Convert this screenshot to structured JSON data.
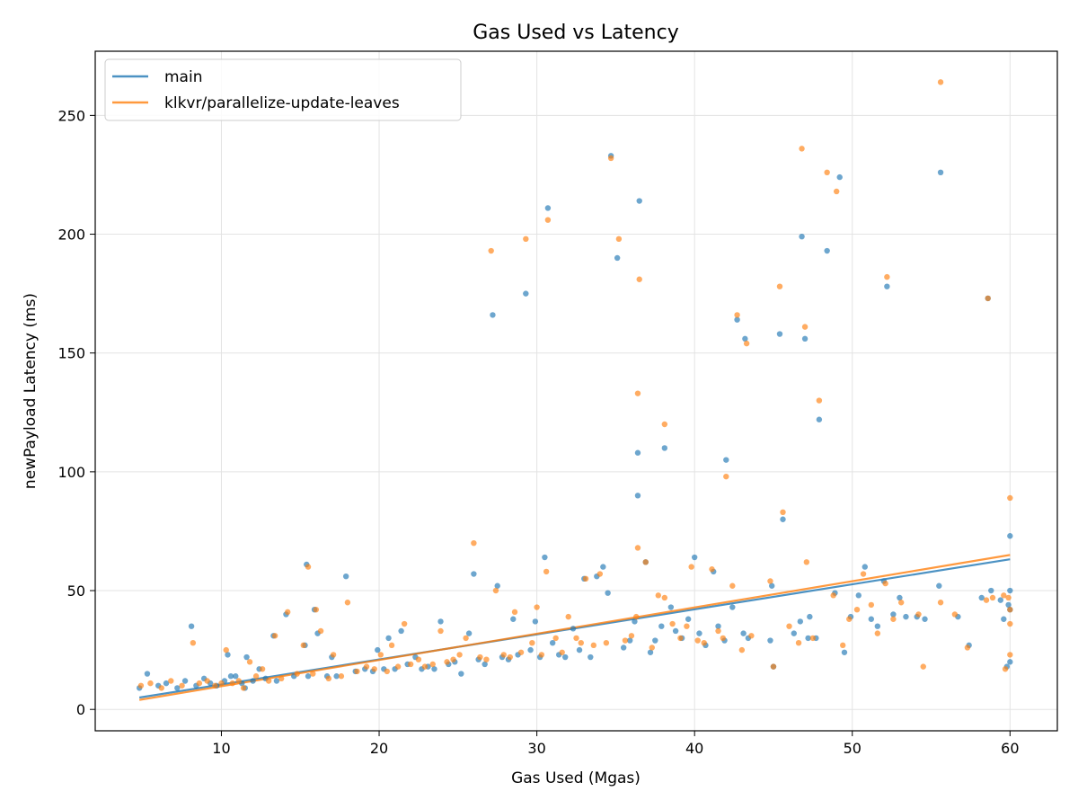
{
  "chart_data": {
    "type": "scatter",
    "title": "Gas Used vs Latency",
    "xlabel": "Gas Used (Mgas)",
    "ylabel": "newPayload Latency (ms)",
    "xlim": [
      2,
      63
    ],
    "ylim": [
      -9,
      277
    ],
    "xticks": [
      10,
      20,
      30,
      40,
      50,
      60
    ],
    "yticks": [
      0,
      50,
      100,
      150,
      200,
      250
    ],
    "grid": true,
    "legend_position": "top-left",
    "series": [
      {
        "name": "main",
        "color": "#1f77b4",
        "trend": [
          [
            4.8,
            5
          ],
          [
            60,
            63.2
          ]
        ],
        "points": [
          [
            4.8,
            9
          ],
          [
            5.3,
            15
          ],
          [
            6,
            10
          ],
          [
            6.5,
            11
          ],
          [
            7.2,
            9
          ],
          [
            7.7,
            12
          ],
          [
            8.1,
            35
          ],
          [
            8.4,
            10
          ],
          [
            8.9,
            13
          ],
          [
            9.3,
            11
          ],
          [
            9.7,
            10
          ],
          [
            10.2,
            12
          ],
          [
            10.4,
            23
          ],
          [
            10.6,
            14
          ],
          [
            10.9,
            14
          ],
          [
            11.3,
            11
          ],
          [
            11.5,
            9
          ],
          [
            11.6,
            22
          ],
          [
            12,
            12
          ],
          [
            12.4,
            17
          ],
          [
            12.8,
            13
          ],
          [
            13.3,
            31
          ],
          [
            13.5,
            12
          ],
          [
            14.1,
            40
          ],
          [
            14.6,
            14
          ],
          [
            15.3,
            27
          ],
          [
            15.4,
            61
          ],
          [
            15.5,
            14
          ],
          [
            15.9,
            42
          ],
          [
            16.1,
            32
          ],
          [
            16.7,
            14
          ],
          [
            17,
            22
          ],
          [
            17.3,
            14
          ],
          [
            17.9,
            56
          ],
          [
            18.5,
            16
          ],
          [
            19.1,
            17
          ],
          [
            19.6,
            16
          ],
          [
            19.9,
            25
          ],
          [
            20.3,
            17
          ],
          [
            20.6,
            30
          ],
          [
            21,
            17
          ],
          [
            21.4,
            33
          ],
          [
            21.8,
            19
          ],
          [
            22.3,
            22
          ],
          [
            22.7,
            17
          ],
          [
            23.1,
            18
          ],
          [
            23.5,
            17
          ],
          [
            23.9,
            37
          ],
          [
            24.4,
            19
          ],
          [
            24.8,
            20
          ],
          [
            25.2,
            15
          ],
          [
            25.7,
            32
          ],
          [
            26,
            57
          ],
          [
            26.3,
            21
          ],
          [
            26.7,
            19
          ],
          [
            27.2,
            166
          ],
          [
            27.5,
            52
          ],
          [
            27.8,
            22
          ],
          [
            28.2,
            21
          ],
          [
            28.5,
            38
          ],
          [
            28.8,
            23
          ],
          [
            29.3,
            175
          ],
          [
            29.6,
            25
          ],
          [
            29.9,
            37
          ],
          [
            30.2,
            22
          ],
          [
            30.5,
            64
          ],
          [
            30.7,
            211
          ],
          [
            31,
            28
          ],
          [
            31.4,
            23
          ],
          [
            31.8,
            22
          ],
          [
            32.3,
            34
          ],
          [
            32.7,
            25
          ],
          [
            33,
            55
          ],
          [
            33.4,
            22
          ],
          [
            33.8,
            56
          ],
          [
            34.2,
            60
          ],
          [
            34.5,
            49
          ],
          [
            34.7,
            233
          ],
          [
            35.1,
            190
          ],
          [
            35.5,
            26
          ],
          [
            35.9,
            29
          ],
          [
            36.2,
            37
          ],
          [
            36.4,
            108
          ],
          [
            36.4,
            90
          ],
          [
            36.5,
            214
          ],
          [
            36.9,
            62
          ],
          [
            37.2,
            24
          ],
          [
            37.5,
            29
          ],
          [
            37.9,
            35
          ],
          [
            38.1,
            110
          ],
          [
            38.5,
            43
          ],
          [
            38.8,
            33
          ],
          [
            39.2,
            30
          ],
          [
            39.6,
            38
          ],
          [
            40,
            64
          ],
          [
            40.3,
            32
          ],
          [
            40.7,
            27
          ],
          [
            41.2,
            58
          ],
          [
            41.5,
            35
          ],
          [
            41.9,
            29
          ],
          [
            42,
            105
          ],
          [
            42.4,
            43
          ],
          [
            42.7,
            164
          ],
          [
            43.1,
            32
          ],
          [
            43.2,
            156
          ],
          [
            43.4,
            30
          ],
          [
            44.9,
            52
          ],
          [
            45,
            18
          ],
          [
            45.4,
            158
          ],
          [
            45.6,
            80
          ],
          [
            46.3,
            32
          ],
          [
            46.7,
            37
          ],
          [
            46.8,
            199
          ],
          [
            47,
            156
          ],
          [
            47.3,
            39
          ],
          [
            47.7,
            30
          ],
          [
            47.9,
            122
          ],
          [
            48.4,
            193
          ],
          [
            48.9,
            49
          ],
          [
            49.2,
            224
          ],
          [
            49.5,
            24
          ],
          [
            49.9,
            39
          ],
          [
            50.4,
            48
          ],
          [
            50.8,
            60
          ],
          [
            51.2,
            38
          ],
          [
            51.6,
            35
          ],
          [
            52,
            54
          ],
          [
            52.2,
            178
          ],
          [
            52.6,
            40
          ],
          [
            53,
            47
          ],
          [
            53.4,
            39
          ],
          [
            54.1,
            39
          ],
          [
            54.6,
            38
          ],
          [
            55.5,
            52
          ],
          [
            55.6,
            226
          ],
          [
            56.7,
            39
          ],
          [
            57.4,
            27
          ],
          [
            58.6,
            173
          ],
          [
            58.8,
            50
          ],
          [
            59.4,
            46
          ],
          [
            59.6,
            38
          ],
          [
            59.8,
            18
          ],
          [
            59.9,
            44
          ],
          [
            60,
            73
          ],
          [
            60,
            50
          ],
          [
            60,
            42
          ],
          [
            60,
            20
          ],
          [
            58.2,
            47
          ],
          [
            47.2,
            30
          ],
          [
            44.8,
            29
          ]
        ]
      },
      {
        "name": "klkvr/parallelize-update-leaves",
        "color": "#ff7f0e",
        "trend": [
          [
            4.8,
            4
          ],
          [
            60,
            65
          ]
        ],
        "points": [
          [
            4.9,
            10
          ],
          [
            5.5,
            11
          ],
          [
            6.2,
            9
          ],
          [
            6.8,
            12
          ],
          [
            7.5,
            10
          ],
          [
            8.2,
            28
          ],
          [
            8.6,
            11
          ],
          [
            9.1,
            12
          ],
          [
            9.6,
            10
          ],
          [
            10,
            11
          ],
          [
            10.3,
            25
          ],
          [
            10.7,
            11
          ],
          [
            11.1,
            12
          ],
          [
            11.4,
            9
          ],
          [
            11.8,
            20
          ],
          [
            12.2,
            14
          ],
          [
            12.6,
            17
          ],
          [
            13,
            12
          ],
          [
            13.4,
            31
          ],
          [
            13.8,
            13
          ],
          [
            14.2,
            41
          ],
          [
            14.8,
            15
          ],
          [
            15.2,
            27
          ],
          [
            15.5,
            60
          ],
          [
            15.8,
            15
          ],
          [
            16,
            42
          ],
          [
            16.3,
            33
          ],
          [
            16.8,
            13
          ],
          [
            17.1,
            23
          ],
          [
            17.6,
            14
          ],
          [
            18,
            45
          ],
          [
            18.6,
            16
          ],
          [
            19.2,
            18
          ],
          [
            19.7,
            17
          ],
          [
            20.1,
            23
          ],
          [
            20.5,
            16
          ],
          [
            20.8,
            27
          ],
          [
            21.2,
            18
          ],
          [
            21.6,
            36
          ],
          [
            22,
            19
          ],
          [
            22.5,
            21
          ],
          [
            22.9,
            18
          ],
          [
            23.4,
            19
          ],
          [
            23.9,
            33
          ],
          [
            24.3,
            20
          ],
          [
            24.7,
            21
          ],
          [
            25.1,
            23
          ],
          [
            25.5,
            30
          ],
          [
            26,
            70
          ],
          [
            26.4,
            22
          ],
          [
            26.8,
            21
          ],
          [
            27.1,
            193
          ],
          [
            27.4,
            50
          ],
          [
            27.9,
            23
          ],
          [
            28.3,
            22
          ],
          [
            28.6,
            41
          ],
          [
            29,
            24
          ],
          [
            29.3,
            198
          ],
          [
            29.7,
            28
          ],
          [
            30,
            43
          ],
          [
            30.3,
            23
          ],
          [
            30.6,
            58
          ],
          [
            30.7,
            206
          ],
          [
            31.2,
            30
          ],
          [
            31.6,
            24
          ],
          [
            32,
            39
          ],
          [
            32.5,
            30
          ],
          [
            32.8,
            28
          ],
          [
            33.1,
            55
          ],
          [
            33.6,
            27
          ],
          [
            34,
            57
          ],
          [
            34.4,
            28
          ],
          [
            34.7,
            232
          ],
          [
            35.2,
            198
          ],
          [
            35.6,
            29
          ],
          [
            36,
            31
          ],
          [
            36.3,
            39
          ],
          [
            36.4,
            133
          ],
          [
            36.4,
            68
          ],
          [
            36.5,
            181
          ],
          [
            36.9,
            62
          ],
          [
            37.3,
            26
          ],
          [
            37.7,
            48
          ],
          [
            38.1,
            120
          ],
          [
            38.1,
            47
          ],
          [
            38.6,
            36
          ],
          [
            39.1,
            30
          ],
          [
            39.5,
            35
          ],
          [
            39.8,
            60
          ],
          [
            40.2,
            29
          ],
          [
            40.6,
            28
          ],
          [
            41.1,
            59
          ],
          [
            41.5,
            33
          ],
          [
            41.8,
            30
          ],
          [
            42,
            98
          ],
          [
            42.4,
            52
          ],
          [
            42.7,
            166
          ],
          [
            43,
            25
          ],
          [
            43.3,
            154
          ],
          [
            43.6,
            31
          ],
          [
            44.8,
            54
          ],
          [
            45,
            18
          ],
          [
            45.4,
            178
          ],
          [
            45.6,
            83
          ],
          [
            46,
            35
          ],
          [
            46.6,
            28
          ],
          [
            46.8,
            236
          ],
          [
            47,
            161
          ],
          [
            47.1,
            62
          ],
          [
            47.5,
            30
          ],
          [
            47.9,
            130
          ],
          [
            48.4,
            226
          ],
          [
            48.8,
            48
          ],
          [
            49,
            218
          ],
          [
            49.4,
            27
          ],
          [
            49.8,
            38
          ],
          [
            50.3,
            42
          ],
          [
            50.7,
            57
          ],
          [
            51.2,
            44
          ],
          [
            51.6,
            32
          ],
          [
            52.1,
            53
          ],
          [
            52.2,
            182
          ],
          [
            52.6,
            38
          ],
          [
            53.1,
            45
          ],
          [
            54.2,
            40
          ],
          [
            54.5,
            18
          ],
          [
            55.6,
            45
          ],
          [
            55.6,
            264
          ],
          [
            56.5,
            40
          ],
          [
            57.3,
            26
          ],
          [
            58.5,
            46
          ],
          [
            58.6,
            173
          ],
          [
            58.9,
            47
          ],
          [
            59.6,
            48
          ],
          [
            59.7,
            17
          ],
          [
            59.9,
            47
          ],
          [
            60,
            89
          ],
          [
            60,
            42
          ],
          [
            60,
            23
          ],
          [
            60,
            36
          ]
        ]
      }
    ]
  }
}
